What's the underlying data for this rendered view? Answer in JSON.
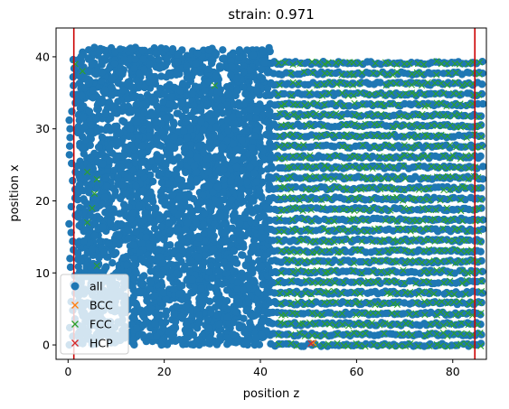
{
  "chart_data": {
    "type": "scatter",
    "title": "strain: 0.971",
    "xlabel": "position z",
    "ylabel": "position x",
    "xlim": [
      -2.5,
      87
    ],
    "ylim": [
      -2,
      44
    ],
    "xticks": [
      0,
      20,
      40,
      60,
      80
    ],
    "yticks": [
      0,
      10,
      20,
      30,
      40
    ],
    "grid": false,
    "legend_position": "lower-left",
    "vlines": [
      1.2,
      84.6
    ],
    "vline_color": "#cc0000",
    "series": [
      {
        "name": "all",
        "marker": "circle",
        "color": "#1f77b4",
        "regions": [
          {
            "kind": "disordered",
            "z_range": [
              2,
              42
            ],
            "x_range": [
              0,
              41
            ]
          },
          {
            "kind": "crystal",
            "z_range": [
              42,
              86
            ],
            "x_range": [
              0,
              40
            ],
            "row_spacing": 1.45
          }
        ]
      },
      {
        "name": "BCC",
        "marker": "x",
        "color": "#ff7f0e",
        "points": [
          [
            51,
            0.3
          ]
        ]
      },
      {
        "name": "FCC",
        "marker": "x",
        "color": "#2ca02c",
        "regions": [
          {
            "kind": "crystal",
            "z_range": [
              44,
              86
            ],
            "x_range": [
              0,
              40
            ],
            "row_spacing": 1.45
          }
        ],
        "points": [
          [
            1.5,
            39
          ],
          [
            3,
            38
          ],
          [
            4,
            24
          ],
          [
            6,
            23
          ],
          [
            5,
            19
          ],
          [
            4,
            17
          ],
          [
            6,
            11
          ],
          [
            30.5,
            36
          ],
          [
            5.5,
            21
          ]
        ]
      },
      {
        "name": "HCP",
        "marker": "x",
        "color": "#d62728",
        "points": [
          [
            50.5,
            0.2
          ]
        ]
      }
    ]
  }
}
